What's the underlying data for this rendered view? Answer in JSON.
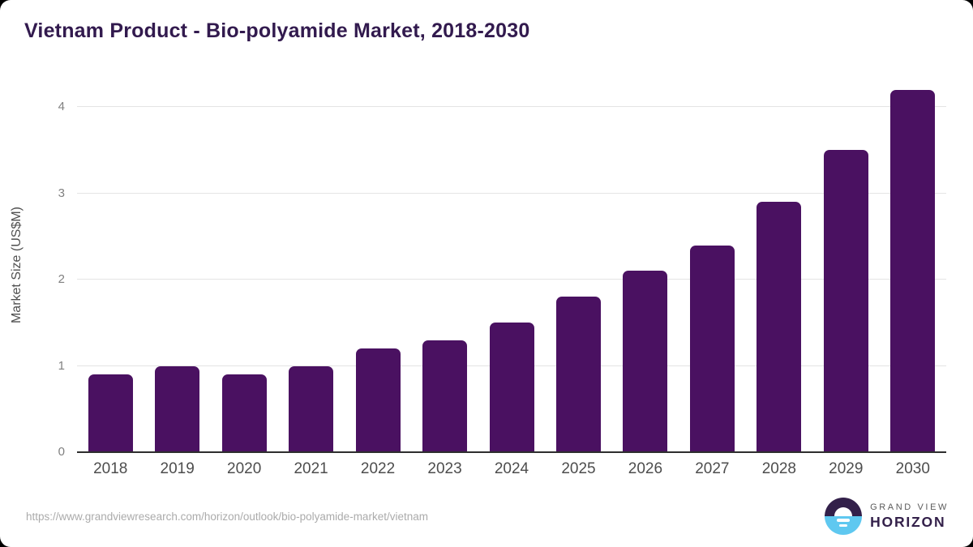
{
  "page": {
    "title": "Vietnam Product - Bio-polyamide Market, 2018-2030",
    "source_url": "https://www.grandviewresearch.com/horizon/outlook/bio-polyamide-market/vietnam"
  },
  "branding": {
    "brand_top": "GRAND VIEW",
    "brand_bottom": "HORIZON",
    "logo_icon": "sunrise-horizon-icon",
    "colors": {
      "logo_purple": "#33204a",
      "logo_blue": "#5fc8f0"
    }
  },
  "chart_data": {
    "type": "bar",
    "title": "Vietnam Product - Bio-polyamide Market, 2018-2030",
    "categories": [
      "2018",
      "2019",
      "2020",
      "2021",
      "2022",
      "2023",
      "2024",
      "2025",
      "2026",
      "2027",
      "2028",
      "2029",
      "2030"
    ],
    "values": [
      0.9,
      1.0,
      0.9,
      1.0,
      1.2,
      1.3,
      1.5,
      1.8,
      2.1,
      2.4,
      2.9,
      3.5,
      4.2
    ],
    "xlabel": "",
    "ylabel": "Market Size (US$M)",
    "yticks": [
      0,
      1,
      2,
      3,
      4
    ],
    "ylim": [
      0,
      4.35
    ],
    "grid": true,
    "legend": false,
    "bar_color": "#4a1161",
    "axis_color": "#2e2e2e",
    "gridline_color": "#e4e4e4",
    "title_color": "#321a4e"
  }
}
